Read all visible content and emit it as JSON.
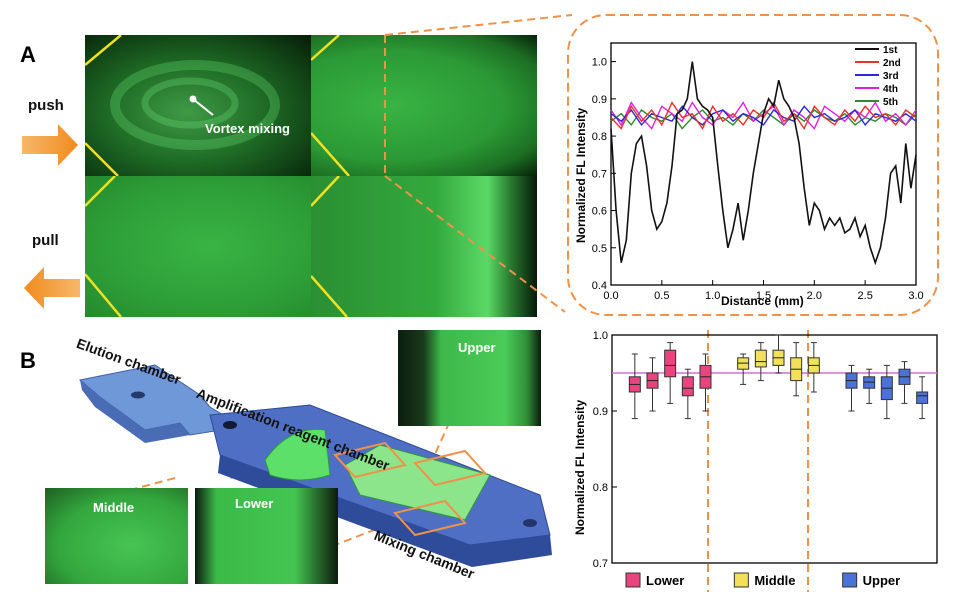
{
  "panel_a": {
    "letter": "A",
    "push_label": "push",
    "pull_label": "pull",
    "vortex_label": "Vortex mixing",
    "chart_data": {
      "type": "line",
      "title": "",
      "xlabel": "Distance (mm)",
      "ylabel": "Normalized FL Intensity",
      "xlim": [
        0.0,
        3.0
      ],
      "ylim": [
        0.4,
        1.05
      ],
      "xticks": [
        "0.0",
        "0.5",
        "1.0",
        "1.5",
        "2.0",
        "2.5",
        "3.0"
      ],
      "yticks": [
        "0.4",
        "0.5",
        "0.6",
        "0.7",
        "0.8",
        "0.9",
        "1.0"
      ],
      "legend_position": "top-right",
      "series": [
        {
          "name": "1st",
          "color": "#111111",
          "x": [
            0.0,
            0.05,
            0.1,
            0.15,
            0.2,
            0.25,
            0.3,
            0.35,
            0.4,
            0.45,
            0.5,
            0.55,
            0.6,
            0.65,
            0.7,
            0.75,
            0.8,
            0.85,
            0.9,
            0.95,
            1.0,
            1.05,
            1.1,
            1.15,
            1.2,
            1.25,
            1.3,
            1.35,
            1.4,
            1.45,
            1.5,
            1.55,
            1.6,
            1.65,
            1.7,
            1.75,
            1.8,
            1.85,
            1.9,
            1.95,
            2.0,
            2.05,
            2.1,
            2.15,
            2.2,
            2.25,
            2.3,
            2.35,
            2.4,
            2.45,
            2.5,
            2.55,
            2.6,
            2.65,
            2.7,
            2.75,
            2.8,
            2.85,
            2.9,
            2.95,
            3.0
          ],
          "y": [
            0.82,
            0.6,
            0.46,
            0.52,
            0.7,
            0.78,
            0.8,
            0.72,
            0.6,
            0.55,
            0.57,
            0.62,
            0.72,
            0.86,
            0.87,
            0.9,
            1.0,
            0.9,
            0.88,
            0.87,
            0.85,
            0.72,
            0.6,
            0.5,
            0.55,
            0.62,
            0.52,
            0.6,
            0.7,
            0.78,
            0.86,
            0.9,
            0.88,
            0.95,
            0.9,
            0.88,
            0.85,
            0.78,
            0.66,
            0.56,
            0.62,
            0.6,
            0.55,
            0.58,
            0.56,
            0.58,
            0.54,
            0.55,
            0.58,
            0.53,
            0.56,
            0.5,
            0.46,
            0.5,
            0.58,
            0.7,
            0.72,
            0.62,
            0.78,
            0.66,
            0.75
          ]
        },
        {
          "name": "2nd",
          "color": "#e8322b",
          "x": [
            0.0,
            0.1,
            0.2,
            0.3,
            0.4,
            0.5,
            0.6,
            0.7,
            0.8,
            0.9,
            1.0,
            1.1,
            1.2,
            1.3,
            1.4,
            1.5,
            1.6,
            1.7,
            1.8,
            1.9,
            2.0,
            2.1,
            2.2,
            2.3,
            2.4,
            2.5,
            2.6,
            2.7,
            2.8,
            2.9,
            3.0
          ],
          "y": [
            0.85,
            0.82,
            0.88,
            0.84,
            0.87,
            0.83,
            0.89,
            0.85,
            0.86,
            0.82,
            0.88,
            0.84,
            0.86,
            0.83,
            0.87,
            0.85,
            0.89,
            0.84,
            0.86,
            0.82,
            0.88,
            0.85,
            0.83,
            0.87,
            0.84,
            0.88,
            0.85,
            0.86,
            0.83,
            0.87,
            0.85
          ]
        },
        {
          "name": "3rd",
          "color": "#2a2ad6",
          "x": [
            0.0,
            0.1,
            0.2,
            0.3,
            0.4,
            0.5,
            0.6,
            0.7,
            0.8,
            0.9,
            1.0,
            1.1,
            1.2,
            1.3,
            1.4,
            1.5,
            1.6,
            1.7,
            1.8,
            1.9,
            2.0,
            2.1,
            2.2,
            2.3,
            2.4,
            2.5,
            2.6,
            2.7,
            2.8,
            2.9,
            3.0
          ],
          "y": [
            0.86,
            0.84,
            0.87,
            0.83,
            0.86,
            0.85,
            0.84,
            0.88,
            0.85,
            0.83,
            0.86,
            0.87,
            0.84,
            0.86,
            0.85,
            0.83,
            0.87,
            0.85,
            0.84,
            0.88,
            0.85,
            0.86,
            0.84,
            0.85,
            0.87,
            0.83,
            0.86,
            0.85,
            0.84,
            0.86,
            0.84
          ]
        },
        {
          "name": "4th",
          "color": "#e020e0",
          "x": [
            0.0,
            0.1,
            0.2,
            0.3,
            0.4,
            0.5,
            0.6,
            0.7,
            0.8,
            0.9,
            1.0,
            1.1,
            1.2,
            1.3,
            1.4,
            1.5,
            1.6,
            1.7,
            1.8,
            1.9,
            2.0,
            2.1,
            2.2,
            2.3,
            2.4,
            2.5,
            2.6,
            2.7,
            2.8,
            2.9,
            3.0
          ],
          "y": [
            0.87,
            0.83,
            0.89,
            0.85,
            0.82,
            0.88,
            0.86,
            0.84,
            0.89,
            0.85,
            0.83,
            0.87,
            0.85,
            0.89,
            0.84,
            0.86,
            0.88,
            0.83,
            0.87,
            0.85,
            0.82,
            0.88,
            0.86,
            0.84,
            0.87,
            0.85,
            0.89,
            0.84,
            0.86,
            0.83,
            0.87
          ]
        },
        {
          "name": "5th",
          "color": "#2e8b2e",
          "x": [
            0.0,
            0.1,
            0.2,
            0.3,
            0.4,
            0.5,
            0.6,
            0.7,
            0.8,
            0.9,
            1.0,
            1.1,
            1.2,
            1.3,
            1.4,
            1.5,
            1.6,
            1.7,
            1.8,
            1.9,
            2.0,
            2.1,
            2.2,
            2.3,
            2.4,
            2.5,
            2.6,
            2.7,
            2.8,
            2.9,
            3.0
          ],
          "y": [
            0.84,
            0.86,
            0.83,
            0.87,
            0.85,
            0.84,
            0.86,
            0.82,
            0.85,
            0.87,
            0.84,
            0.85,
            0.83,
            0.86,
            0.84,
            0.87,
            0.85,
            0.83,
            0.86,
            0.84,
            0.87,
            0.85,
            0.84,
            0.86,
            0.83,
            0.85,
            0.84,
            0.86,
            0.85,
            0.83,
            0.86
          ]
        }
      ]
    }
  },
  "panel_b": {
    "letter": "B",
    "elution_label": "Elution chamber",
    "amplification_label": "Amplification reagent chamber",
    "mixing_label": "Mixing chamber",
    "upper_label": "Upper",
    "middle_label": "Middle",
    "lower_label": "Lower",
    "chart_data": {
      "type": "box",
      "ylabel": "Normalized FL Intensity",
      "ylim": [
        0.7,
        1.0
      ],
      "yticks": [
        "0.7",
        "0.8",
        "0.9",
        "1.0"
      ],
      "reference_line": 0.95,
      "groups": [
        {
          "name": "Lower",
          "color": "#e8457f",
          "boxes": [
            {
              "min": 0.89,
              "q1": 0.925,
              "median": 0.935,
              "q3": 0.945,
              "max": 0.975
            },
            {
              "min": 0.9,
              "q1": 0.93,
              "median": 0.94,
              "q3": 0.95,
              "max": 0.97
            },
            {
              "min": 0.91,
              "q1": 0.945,
              "median": 0.96,
              "q3": 0.98,
              "max": 0.99
            },
            {
              "min": 0.89,
              "q1": 0.92,
              "median": 0.93,
              "q3": 0.945,
              "max": 0.955
            },
            {
              "min": 0.9,
              "q1": 0.93,
              "median": 0.945,
              "q3": 0.96,
              "max": 0.975
            }
          ]
        },
        {
          "name": "Middle",
          "color": "#f3e05a",
          "boxes": [
            {
              "min": 0.935,
              "q1": 0.955,
              "median": 0.963,
              "q3": 0.97,
              "max": 0.975
            },
            {
              "min": 0.94,
              "q1": 0.958,
              "median": 0.965,
              "q3": 0.98,
              "max": 0.99
            },
            {
              "min": 0.95,
              "q1": 0.96,
              "median": 0.97,
              "q3": 0.98,
              "max": 1.0
            },
            {
              "min": 0.92,
              "q1": 0.94,
              "median": 0.955,
              "q3": 0.97,
              "max": 0.99
            },
            {
              "min": 0.925,
              "q1": 0.95,
              "median": 0.96,
              "q3": 0.97,
              "max": 0.99
            }
          ]
        },
        {
          "name": "Upper",
          "color": "#4a72d8",
          "boxes": [
            {
              "min": 0.9,
              "q1": 0.93,
              "median": 0.94,
              "q3": 0.95,
              "max": 0.96
            },
            {
              "min": 0.91,
              "q1": 0.93,
              "median": 0.938,
              "q3": 0.945,
              "max": 0.955
            },
            {
              "min": 0.89,
              "q1": 0.915,
              "median": 0.93,
              "q3": 0.945,
              "max": 0.96
            },
            {
              "min": 0.91,
              "q1": 0.935,
              "median": 0.945,
              "q3": 0.955,
              "max": 0.965
            },
            {
              "min": 0.89,
              "q1": 0.91,
              "median": 0.92,
              "q3": 0.925,
              "max": 0.945
            }
          ]
        }
      ]
    }
  }
}
